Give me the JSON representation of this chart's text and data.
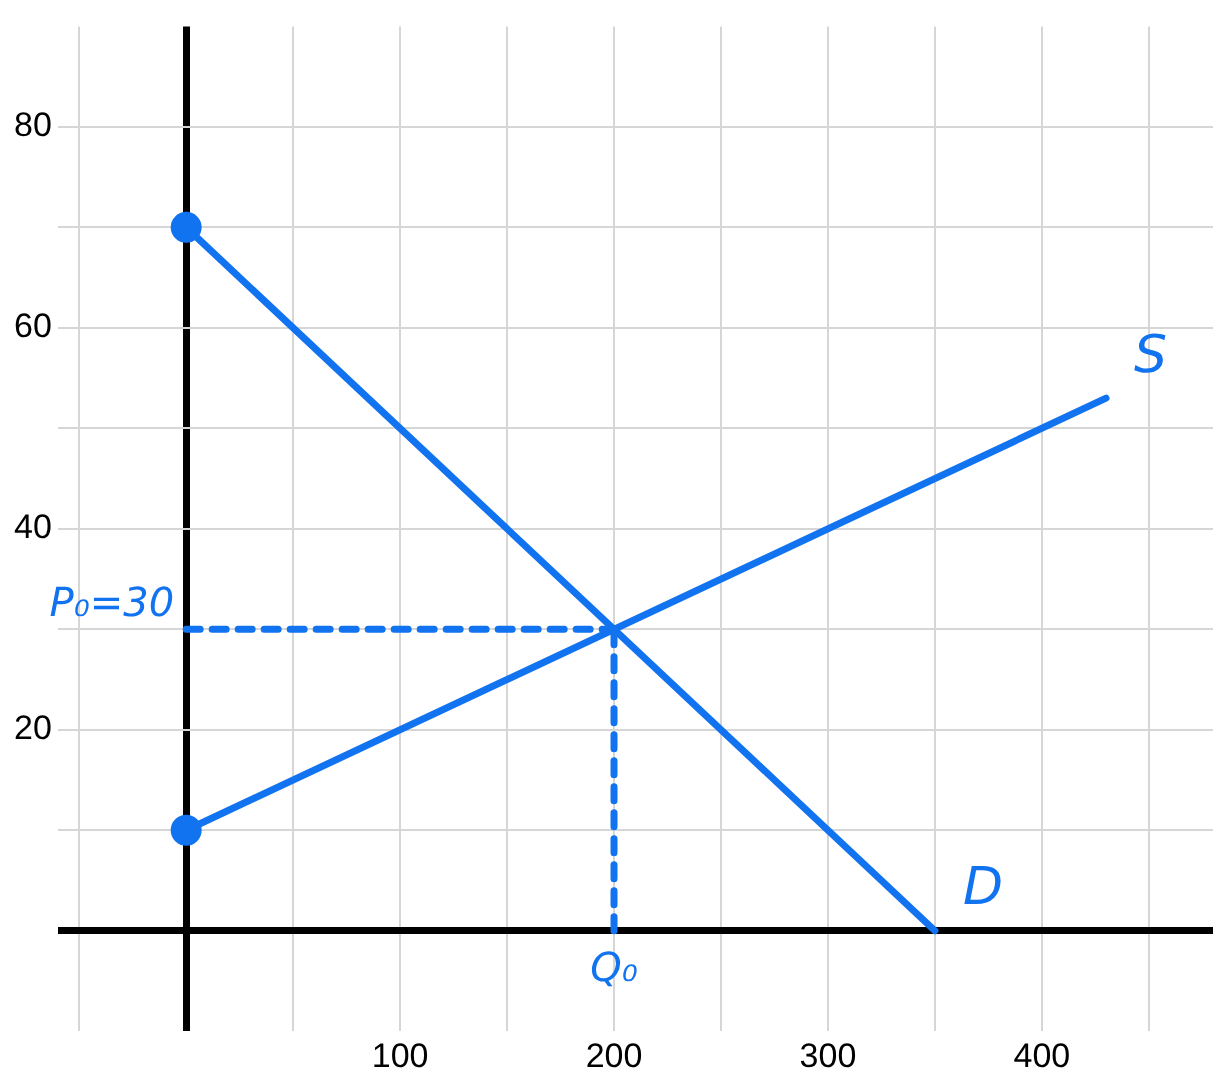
{
  "chart_data": {
    "type": "line",
    "xlim": [
      -60,
      480
    ],
    "ylim": [
      -10,
      90
    ],
    "xticks": [
      {
        "value": -50,
        "label": null
      },
      {
        "value": 0,
        "label": null
      },
      {
        "value": 50,
        "label": null
      },
      100,
      {
        "value": 150,
        "label": null
      },
      200,
      {
        "value": 250,
        "label": null
      },
      300,
      {
        "value": 350,
        "label": null
      },
      400,
      {
        "value": 450,
        "label": null
      }
    ],
    "yticks": [
      {
        "value": 0,
        "label": null
      },
      {
        "value": 10,
        "label": null
      },
      20,
      {
        "value": 30,
        "label": null
      },
      40,
      {
        "value": 50,
        "label": null
      },
      60,
      {
        "value": 70,
        "label": null
      },
      80
    ],
    "grid": true,
    "legend": false,
    "marker": "none",
    "line_style": "solid",
    "series": [
      {
        "name": "D",
        "color": "#1273f0",
        "x": [
          0,
          350
        ],
        "values": [
          70,
          0
        ]
      },
      {
        "name": "S",
        "color": "#1273f0",
        "x": [
          0,
          430
        ],
        "values": [
          10,
          53
        ]
      },
      {
        "color": "#1273f0",
        "x": [
          0,
          200
        ],
        "values": [
          30,
          30
        ],
        "line_style": "dashed"
      },
      {
        "color": "#1273f0",
        "x": [
          200,
          200
        ],
        "values": [
          0,
          30
        ],
        "line_style": "dashed"
      },
      {
        "type": "scatter",
        "color": "#1273f0",
        "x": [
          0,
          0
        ],
        "values": [
          70,
          10
        ],
        "marker": "circle"
      }
    ],
    "annotations": [
      {
        "text": "P₀=30",
        "x": 0,
        "y": 30
      },
      {
        "text": "Q₀",
        "x": 200,
        "y": 0
      }
    ]
  }
}
